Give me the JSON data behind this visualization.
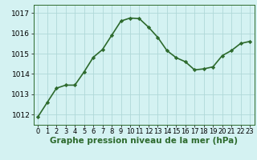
{
  "x": [
    0,
    1,
    2,
    3,
    4,
    5,
    6,
    7,
    8,
    9,
    10,
    11,
    12,
    13,
    14,
    15,
    16,
    17,
    18,
    19,
    20,
    21,
    22,
    23
  ],
  "y": [
    1011.9,
    1012.6,
    1013.3,
    1013.45,
    1013.45,
    1014.1,
    1014.82,
    1015.2,
    1015.9,
    1016.6,
    1016.75,
    1016.72,
    1016.3,
    1015.8,
    1015.15,
    1014.8,
    1014.6,
    1014.2,
    1014.25,
    1014.35,
    1014.9,
    1015.15,
    1015.5,
    1015.6
  ],
  "line_color": "#2d6a2d",
  "marker": "D",
  "marker_size": 2.2,
  "background_color": "#d4f2f2",
  "grid_color": "#b0d8d8",
  "xlabel": "Graphe pression niveau de la mer (hPa)",
  "xlabel_fontsize": 7.5,
  "ylim": [
    1011.5,
    1017.4
  ],
  "yticks": [
    1012,
    1013,
    1014,
    1015,
    1016,
    1017
  ],
  "xticks": [
    0,
    1,
    2,
    3,
    4,
    5,
    6,
    7,
    8,
    9,
    10,
    11,
    12,
    13,
    14,
    15,
    16,
    17,
    18,
    19,
    20,
    21,
    22,
    23
  ],
  "tick_fontsize": 6.0,
  "ytick_fontsize": 6.5,
  "line_width": 1.2
}
